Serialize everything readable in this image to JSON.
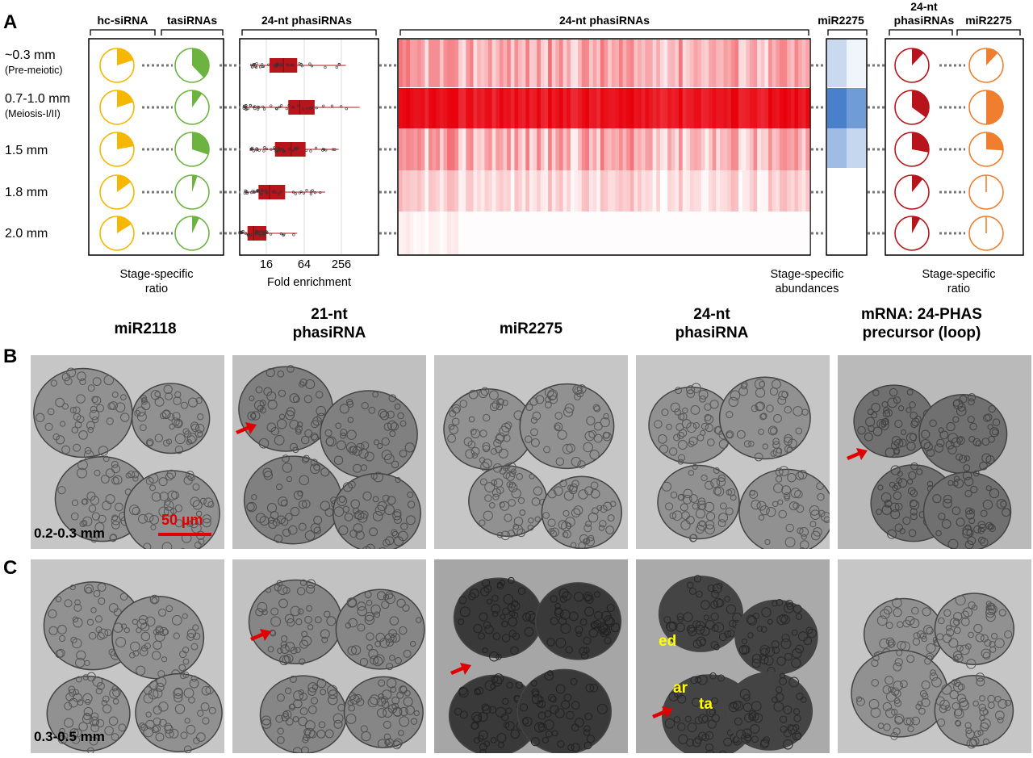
{
  "panels": {
    "a": "A",
    "b": "B",
    "c": "C"
  },
  "stages": [
    {
      "label": "~0.3 mm",
      "sub": "(Pre-meiotic)"
    },
    {
      "label": "0.7-1.0 mm",
      "sub": "(Meiosis-I/II)"
    },
    {
      "label": "1.5 mm",
      "sub": ""
    },
    {
      "label": "1.8 mm",
      "sub": ""
    },
    {
      "label": "2.0 mm",
      "sub": ""
    }
  ],
  "headers": {
    "hc_sirna": "hc-siRNA",
    "tasirnas": "tasiRNAs",
    "box_24nt": "24-nt phasiRNAs",
    "heat_24nt": "24-nt phasiRNAs",
    "mir2275": "miR2275",
    "pie_24nt_line1": "24-nt",
    "pie_24nt_line2": "phasiRNAs",
    "pie_mir2275": "miR2275"
  },
  "footers": {
    "ratio_left_1": "Stage-specific",
    "ratio_left_2": "ratio",
    "fold": "Fold enrichment",
    "abund_1": "Stage-specific",
    "abund_2": "abundances",
    "ratio_right_1": "Stage-specific",
    "ratio_right_2": "ratio"
  },
  "fold_ticks": [
    "16",
    "64",
    "256"
  ],
  "colors": {
    "hc": "#f5b700",
    "tasi": "#6db33f",
    "phasi": "#b8141b",
    "mir2275": "#ef7f2f",
    "heat": "#e8000b",
    "blue": "#2a6fbb"
  },
  "pies": {
    "hc_sirna": [
      0.2,
      0.2,
      0.22,
      0.15,
      0.16
    ],
    "tasirnas": [
      0.38,
      0.1,
      0.3,
      0.05,
      0.07
    ],
    "phasi_24nt": [
      0.12,
      0.35,
      0.28,
      0.11,
      0.08
    ],
    "mir2275": [
      0.12,
      0.5,
      0.26,
      0.01,
      0.01
    ]
  },
  "chart_data": {
    "type": "box",
    "xlabel": "Fold enrichment",
    "scale": "log2",
    "ticks": [
      16,
      64,
      256
    ],
    "categories": [
      "~0.3 mm",
      "0.7-1.0 mm",
      "1.5 mm",
      "1.8 mm",
      "2.0 mm"
    ],
    "boxes": [
      {
        "q1": 18,
        "median": 30,
        "q3": 50,
        "min": 9,
        "max": 300
      },
      {
        "q1": 36,
        "median": 55,
        "q3": 95,
        "min": 7,
        "max": 500
      },
      {
        "q1": 22,
        "median": 40,
        "q3": 68,
        "min": 9,
        "max": 230
      },
      {
        "q1": 12,
        "median": 18,
        "q3": 32,
        "min": 7,
        "max": 140
      },
      {
        "q1": 8,
        "median": 10,
        "q3": 16,
        "min": 6,
        "max": 50
      }
    ]
  },
  "heatmap": {
    "rows": [
      {
        "mean": 0.32,
        "spread": 0.26
      },
      {
        "mean": 0.92,
        "spread": 0.1
      },
      {
        "mean": 0.3,
        "spread": 0.3
      },
      {
        "mean": 0.15,
        "spread": 0.17
      },
      {
        "mean": 0.02,
        "spread": 0.08
      }
    ],
    "mir2275_levels": [
      0.25,
      0.85,
      0.45,
      0.0,
      0.0
    ]
  },
  "columns": [
    {
      "line1": "miR2118",
      "line2": ""
    },
    {
      "line1": "21-nt",
      "line2": "phasiRNA"
    },
    {
      "line1": "miR2275",
      "line2": ""
    },
    {
      "line1": "24-nt",
      "line2": "phasiRNA"
    },
    {
      "line1": "mRNA: 24-PHAS",
      "line2": "precursor (loop)"
    }
  ],
  "micrographs": {
    "row_b_label": "0.2-0.3 mm",
    "row_c_label": "0.3-0.5 mm",
    "scale_bar": "50 µm",
    "regions": {
      "ed": "ed",
      "ar": "ar",
      "ta": "ta"
    }
  }
}
